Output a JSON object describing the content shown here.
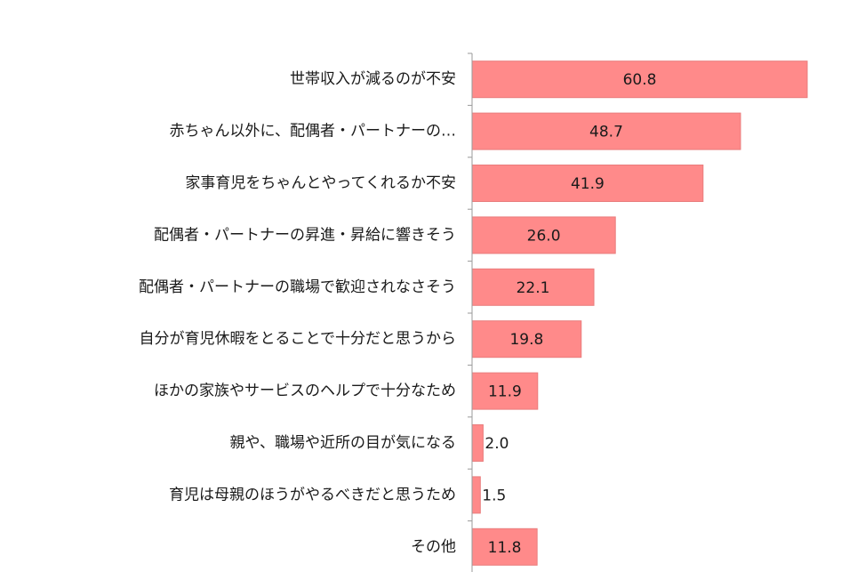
{
  "chart_data": {
    "type": "bar",
    "orientation": "horizontal",
    "title": "",
    "xlabel": "",
    "ylabel": "",
    "xlim": [
      0,
      65
    ],
    "grid": false,
    "legend": "none",
    "bar_color": "#ff8a8a",
    "bar_edge_color": "#e97c7c",
    "axis_color": "#9a9a9a",
    "categories": [
      "世帯収入が減るのが不安",
      "赤ちゃん以外に、配偶者・パートナーの…",
      "家事育児をちゃんとやってくれるか不安",
      "配偶者・パートナーの昇進・昇給に響きそう",
      "配偶者・パートナーの職場で歓迎されなさそう",
      "自分が育児休暇をとることで十分だと思うから",
      "ほかの家族やサービスのヘルプで十分なため",
      "親や、職場や近所の目が気になる",
      "育児は母親のほうがやるべきだと思うため",
      "その他"
    ],
    "values": [
      60.8,
      48.7,
      41.9,
      26.0,
      22.1,
      19.8,
      11.9,
      2.0,
      1.5,
      11.8
    ],
    "value_labels": [
      "60.8",
      "48.7",
      "41.9",
      "26.0",
      "22.1",
      "19.8",
      "11.9",
      "2.0",
      "1.5",
      "11.8"
    ]
  }
}
